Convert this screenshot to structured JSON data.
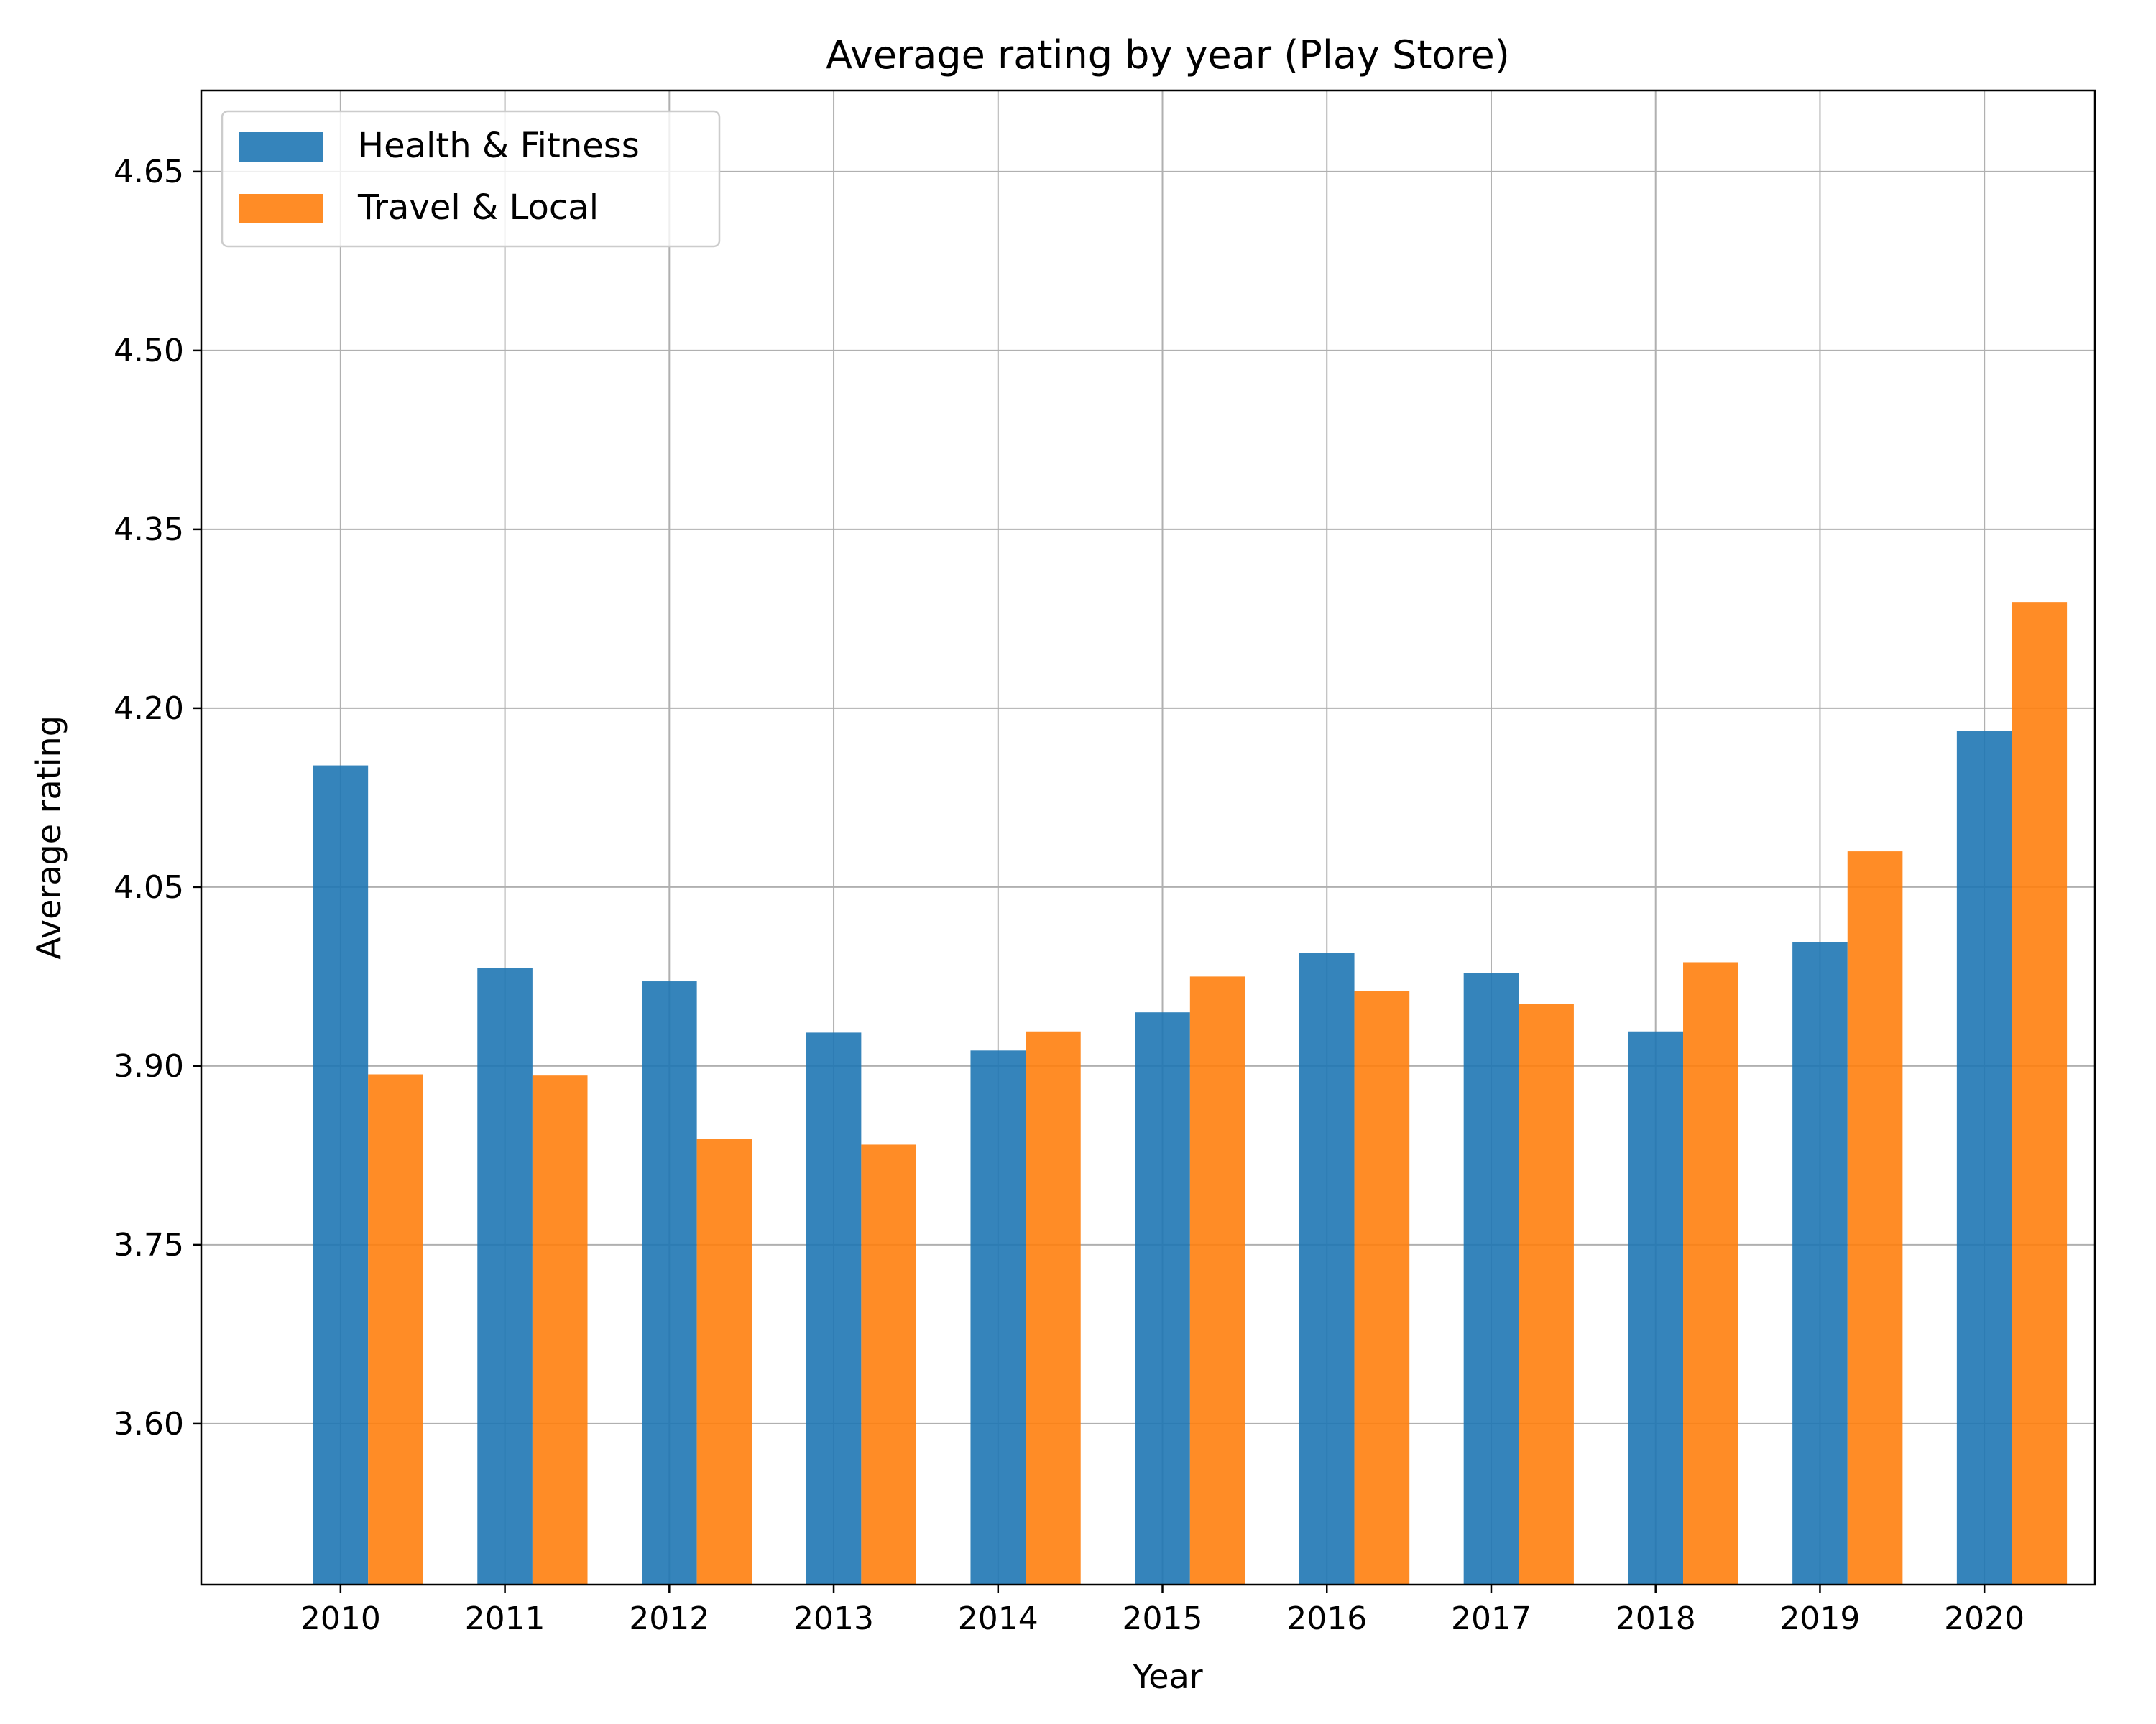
{
  "chart_data": {
    "type": "bar",
    "title": "Average rating by year (Play Store)",
    "xlabel": "Year",
    "ylabel": "Average rating",
    "categories": [
      "2010",
      "2011",
      "2012",
      "2013",
      "2014",
      "2015",
      "2016",
      "2017",
      "2018",
      "2019",
      "2020"
    ],
    "series": [
      {
        "name": "Health & Fitness",
        "color": "#1f77b4",
        "values": [
          4.152,
          3.982,
          3.971,
          3.928,
          3.913,
          3.945,
          3.995,
          3.978,
          3.929,
          4.004,
          4.181
        ]
      },
      {
        "name": "Travel & Local",
        "color": "#ff7f0e",
        "values": [
          3.893,
          3.892,
          3.839,
          3.834,
          3.929,
          3.975,
          3.963,
          3.952,
          3.987,
          4.08,
          4.289
        ]
      }
    ],
    "ylim": [
      3.465,
      4.718
    ],
    "yticks": [
      "3.60",
      "3.75",
      "3.90",
      "4.05",
      "4.20",
      "4.35",
      "4.50",
      "4.65"
    ],
    "grid": true,
    "legend_position": "top-left"
  }
}
